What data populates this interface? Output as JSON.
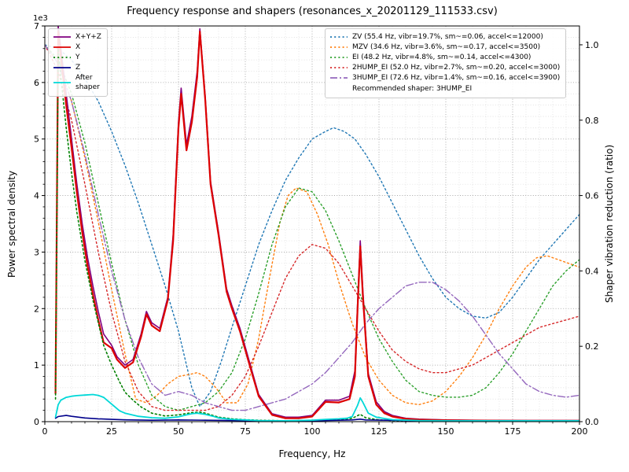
{
  "chart_data": {
    "type": "line",
    "title": "Frequency response and shapers (resonances_x_20201129_111533.csv)",
    "xlabel": "Frequency, Hz",
    "ylabel_left": "Power spectral density",
    "ylabel_right": "Shaper vibration reduction (ratio)",
    "left_axis_multiplier": "1e3",
    "xlim": [
      0,
      200
    ],
    "ylim_left": [
      0,
      7000
    ],
    "ylim_right": [
      0,
      1.05
    ],
    "x_ticks": [
      0,
      25,
      50,
      75,
      100,
      125,
      150,
      175,
      200
    ],
    "y_ticks_left": [
      0,
      1,
      2,
      3,
      4,
      5,
      6,
      7
    ],
    "y_ticks_right": [
      0.0,
      0.2,
      0.4,
      0.6,
      0.8,
      1.0
    ],
    "grid": true,
    "legend_position": "upper left / upper center",
    "legend_left": [
      {
        "label": "X+Y+Z",
        "color": "#800080",
        "style": "solid"
      },
      {
        "label": "X",
        "color": "#dd0000",
        "style": "solid"
      },
      {
        "label": "Y",
        "color": "#008000",
        "style": "dotted"
      },
      {
        "label": "Z",
        "color": "#00008b",
        "style": "solid"
      },
      {
        "label": "After\nshaper",
        "color": "#00d8d8",
        "style": "solid"
      }
    ],
    "legend_right": {
      "entries": [
        {
          "label": "ZV (55.4 Hz, vibr=19.7%, sm~=0.06, accel<=12000)",
          "color": "#1f77b4",
          "style": "dotted"
        },
        {
          "label": "MZV (34.6 Hz, vibr=3.6%, sm~=0.17, accel<=3500)",
          "color": "#ff7f0e",
          "style": "dotted"
        },
        {
          "label": "EI (48.2 Hz, vibr=4.8%, sm~=0.14, accel<=4300)",
          "color": "#2ca02c",
          "style": "dotted"
        },
        {
          "label": "2HUMP_EI (52.0 Hz, vibr=2.7%, sm~=0.20, accel<=3000)",
          "color": "#d62728",
          "style": "dotted"
        },
        {
          "label": "3HUMP_EI (72.6 Hz, vibr=1.4%, sm~=0.16, accel<=3900)",
          "color": "#9467bd",
          "style": "dashdot"
        }
      ],
      "note": "Recommended shaper: 3HUMP_EI"
    },
    "psd_series": [
      {
        "name": "X+Y+Z",
        "color": "#800080",
        "style": "solid",
        "width": 1.6,
        "axis": "left",
        "x": [
          4,
          5,
          6,
          8,
          10,
          12,
          14,
          16,
          18,
          20,
          22,
          25,
          27,
          30,
          33,
          36,
          38,
          40,
          43,
          46,
          48,
          50,
          51,
          53,
          55,
          57,
          58,
          60,
          62,
          65,
          68,
          70,
          73,
          76,
          80,
          85,
          90,
          95,
          100,
          105,
          110,
          114,
          116,
          117,
          118,
          119,
          121,
          124,
          127,
          130,
          135,
          140,
          150,
          160,
          180,
          200
        ],
        "y": [
          600,
          7000,
          6600,
          5800,
          5000,
          4200,
          3500,
          2900,
          2400,
          1950,
          1550,
          1350,
          1150,
          1000,
          1100,
          1550,
          1950,
          1750,
          1650,
          2200,
          3300,
          5300,
          5900,
          4900,
          5400,
          6200,
          6950,
          5750,
          4250,
          3350,
          2350,
          2050,
          1650,
          1150,
          480,
          140,
          80,
          80,
          110,
          380,
          380,
          450,
          900,
          2100,
          3200,
          2300,
          850,
          350,
          180,
          110,
          60,
          45,
          30,
          25,
          20,
          20
        ]
      },
      {
        "name": "X",
        "color": "#dd0000",
        "style": "solid",
        "width": 2.2,
        "axis": "left",
        "x": [
          4,
          5,
          6,
          8,
          10,
          12,
          14,
          16,
          18,
          20,
          22,
          25,
          27,
          30,
          33,
          36,
          38,
          40,
          43,
          46,
          48,
          50,
          51,
          53,
          55,
          57,
          58,
          60,
          62,
          65,
          68,
          70,
          73,
          76,
          80,
          85,
          90,
          95,
          100,
          105,
          110,
          114,
          116,
          117,
          118,
          119,
          121,
          124,
          127,
          130,
          135,
          140,
          150,
          160,
          180,
          200
        ],
        "y": [
          500,
          6900,
          6450,
          5600,
          4850,
          4050,
          3350,
          2750,
          2250,
          1800,
          1400,
          1300,
          1100,
          950,
          1050,
          1500,
          1900,
          1700,
          1600,
          2150,
          3200,
          5200,
          5800,
          4800,
          5300,
          6100,
          6900,
          5700,
          4200,
          3300,
          2300,
          2000,
          1600,
          1100,
          450,
          120,
          60,
          60,
          90,
          350,
          340,
          400,
          800,
          2000,
          3100,
          2200,
          800,
          300,
          150,
          90,
          50,
          35,
          25,
          20,
          15,
          15
        ]
      },
      {
        "name": "Y",
        "color": "#008000",
        "style": "dotted",
        "width": 1.6,
        "axis": "left",
        "x": [
          4,
          5,
          6,
          8,
          10,
          12,
          15,
          18,
          20,
          22,
          25,
          28,
          30,
          33,
          36,
          40,
          45,
          50,
          55,
          58,
          60,
          65,
          70,
          75,
          80,
          90,
          100,
          110,
          115,
          118,
          120,
          125,
          130,
          150,
          200
        ],
        "y": [
          400,
          6600,
          6100,
          5200,
          4400,
          3700,
          2850,
          2150,
          1750,
          1350,
          1000,
          700,
          520,
          380,
          260,
          150,
          100,
          120,
          160,
          170,
          150,
          80,
          50,
          35,
          25,
          15,
          20,
          30,
          60,
          130,
          70,
          30,
          20,
          10,
          10
        ]
      },
      {
        "name": "Z",
        "color": "#00008b",
        "style": "solid",
        "width": 1.6,
        "axis": "left",
        "x": [
          4,
          5,
          8,
          10,
          15,
          20,
          25,
          30,
          40,
          50,
          60,
          80,
          100,
          115,
          118,
          120,
          150,
          200
        ],
        "y": [
          60,
          90,
          110,
          95,
          65,
          50,
          40,
          32,
          25,
          30,
          25,
          15,
          15,
          30,
          45,
          30,
          10,
          10
        ]
      },
      {
        "name": "After shaper",
        "color": "#00d8d8",
        "style": "solid",
        "width": 1.8,
        "axis": "left",
        "x": [
          4,
          5,
          6,
          8,
          10,
          12,
          15,
          18,
          20,
          22,
          25,
          28,
          30,
          35,
          40,
          45,
          50,
          53,
          55,
          57,
          60,
          63,
          65,
          70,
          75,
          80,
          90,
          100,
          105,
          110,
          113,
          115,
          117,
          118,
          119,
          121,
          124,
          127,
          130,
          140,
          150,
          160,
          180,
          200
        ],
        "y": [
          80,
          300,
          380,
          430,
          450,
          460,
          470,
          480,
          465,
          430,
          310,
          190,
          150,
          95,
          70,
          60,
          85,
          120,
          140,
          150,
          130,
          95,
          65,
          40,
          30,
          20,
          15,
          25,
          40,
          50,
          60,
          90,
          290,
          420,
          340,
          150,
          80,
          55,
          35,
          20,
          15,
          15,
          15,
          15
        ]
      }
    ],
    "shaper_series": [
      {
        "name": "ZV",
        "color": "#1f77b4",
        "style": "dotted",
        "width": 1.4,
        "axis": "right",
        "x": [
          0,
          5,
          10,
          15,
          20,
          25,
          30,
          35,
          40,
          45,
          50,
          53,
          55,
          58,
          62,
          66,
          70,
          75,
          80,
          85,
          90,
          95,
          100,
          105,
          108,
          112,
          116,
          120,
          125,
          130,
          135,
          140,
          145,
          150,
          155,
          160,
          165,
          170,
          175,
          180,
          185,
          190,
          195,
          200
        ],
        "y": [
          1.0,
          0.99,
          0.96,
          0.91,
          0.85,
          0.77,
          0.68,
          0.58,
          0.47,
          0.36,
          0.24,
          0.15,
          0.09,
          0.04,
          0.08,
          0.16,
          0.25,
          0.36,
          0.47,
          0.56,
          0.64,
          0.7,
          0.75,
          0.77,
          0.78,
          0.77,
          0.75,
          0.71,
          0.65,
          0.58,
          0.51,
          0.44,
          0.38,
          0.33,
          0.3,
          0.28,
          0.275,
          0.29,
          0.33,
          0.38,
          0.43,
          0.47,
          0.51,
          0.55
        ]
      },
      {
        "name": "MZV",
        "color": "#ff7f0e",
        "style": "dotted",
        "width": 1.4,
        "axis": "right",
        "x": [
          0,
          5,
          10,
          15,
          20,
          25,
          30,
          34,
          38,
          42,
          46,
          50,
          54,
          57,
          60,
          64,
          68,
          72,
          76,
          80,
          84,
          88,
          91,
          94,
          98,
          102,
          106,
          110,
          115,
          120,
          125,
          130,
          135,
          140,
          145,
          150,
          155,
          160,
          165,
          170,
          175,
          180,
          184,
          188,
          192,
          196,
          200
        ],
        "y": [
          1.0,
          0.95,
          0.85,
          0.7,
          0.53,
          0.35,
          0.18,
          0.06,
          0.05,
          0.07,
          0.1,
          0.12,
          0.125,
          0.13,
          0.12,
          0.09,
          0.05,
          0.05,
          0.1,
          0.22,
          0.38,
          0.53,
          0.6,
          0.62,
          0.61,
          0.55,
          0.47,
          0.37,
          0.26,
          0.17,
          0.11,
          0.07,
          0.05,
          0.045,
          0.055,
          0.08,
          0.12,
          0.17,
          0.23,
          0.3,
          0.36,
          0.41,
          0.435,
          0.44,
          0.43,
          0.42,
          0.41
        ]
      },
      {
        "name": "EI",
        "color": "#2ca02c",
        "style": "dotted",
        "width": 1.4,
        "axis": "right",
        "x": [
          0,
          5,
          10,
          15,
          20,
          25,
          30,
          35,
          40,
          45,
          50,
          55,
          60,
          65,
          70,
          75,
          80,
          85,
          90,
          95,
          100,
          105,
          110,
          115,
          120,
          125,
          130,
          135,
          140,
          145,
          150,
          155,
          160,
          165,
          170,
          175,
          180,
          185,
          190,
          195,
          200
        ],
        "y": [
          1.0,
          0.96,
          0.87,
          0.74,
          0.58,
          0.42,
          0.27,
          0.15,
          0.07,
          0.04,
          0.03,
          0.04,
          0.05,
          0.08,
          0.13,
          0.22,
          0.34,
          0.47,
          0.57,
          0.62,
          0.61,
          0.56,
          0.48,
          0.39,
          0.3,
          0.22,
          0.16,
          0.11,
          0.08,
          0.07,
          0.065,
          0.065,
          0.07,
          0.09,
          0.13,
          0.18,
          0.24,
          0.3,
          0.36,
          0.4,
          0.43
        ]
      },
      {
        "name": "2HUMP_EI",
        "color": "#d62728",
        "style": "dotted",
        "width": 1.4,
        "axis": "right",
        "x": [
          0,
          5,
          10,
          15,
          20,
          25,
          30,
          35,
          40,
          45,
          50,
          55,
          60,
          65,
          70,
          75,
          80,
          85,
          90,
          95,
          100,
          105,
          110,
          115,
          120,
          125,
          130,
          135,
          140,
          145,
          150,
          155,
          160,
          165,
          170,
          175,
          180,
          185,
          190,
          195,
          200
        ],
        "y": [
          1.0,
          0.93,
          0.8,
          0.63,
          0.45,
          0.29,
          0.16,
          0.08,
          0.04,
          0.03,
          0.03,
          0.03,
          0.03,
          0.04,
          0.07,
          0.12,
          0.2,
          0.29,
          0.38,
          0.44,
          0.47,
          0.46,
          0.42,
          0.36,
          0.3,
          0.24,
          0.19,
          0.16,
          0.14,
          0.13,
          0.13,
          0.14,
          0.15,
          0.17,
          0.19,
          0.21,
          0.23,
          0.25,
          0.26,
          0.27,
          0.28
        ]
      },
      {
        "name": "3HUMP_EI",
        "color": "#9467bd",
        "style": "dashdot",
        "width": 1.4,
        "axis": "right",
        "x": [
          0,
          5,
          10,
          15,
          20,
          25,
          30,
          35,
          40,
          45,
          50,
          55,
          60,
          65,
          70,
          75,
          80,
          85,
          90,
          95,
          100,
          105,
          110,
          115,
          120,
          125,
          130,
          135,
          140,
          145,
          150,
          155,
          160,
          165,
          170,
          175,
          180,
          185,
          190,
          195,
          200
        ],
        "y": [
          1.0,
          0.95,
          0.85,
          0.71,
          0.55,
          0.4,
          0.27,
          0.17,
          0.1,
          0.07,
          0.08,
          0.07,
          0.05,
          0.04,
          0.03,
          0.03,
          0.04,
          0.05,
          0.06,
          0.08,
          0.1,
          0.13,
          0.17,
          0.21,
          0.26,
          0.3,
          0.33,
          0.36,
          0.37,
          0.37,
          0.35,
          0.32,
          0.28,
          0.23,
          0.18,
          0.14,
          0.1,
          0.08,
          0.07,
          0.065,
          0.07
        ]
      }
    ]
  }
}
